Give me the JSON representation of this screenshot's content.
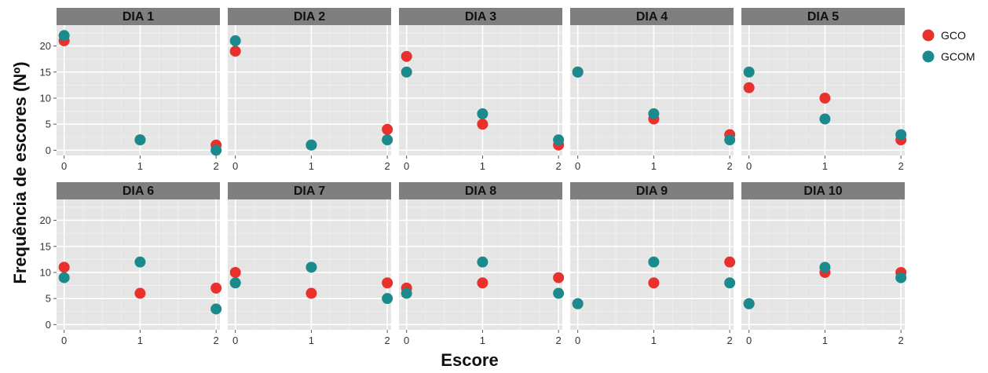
{
  "chart_data": {
    "type": "scatter",
    "facet_by": "day",
    "xlabel": "Escore",
    "ylabel": "Frequência de escores (Nº)",
    "x_ticks": [
      "0",
      "1",
      "2"
    ],
    "y_ticks": [
      "0",
      "5",
      "10",
      "15",
      "20"
    ],
    "xlim": [
      -0.1,
      2.05
    ],
    "ylim": [
      -1,
      24
    ],
    "grid": true,
    "legend_position": "right",
    "series": [
      {
        "name": "GCO",
        "color": "#e8302c"
      },
      {
        "name": "GCOM",
        "color": "#1b8a8c"
      }
    ],
    "panels": [
      {
        "title": "DIA 1",
        "GCO": [
          21,
          2,
          1
        ],
        "GCOM": [
          22,
          2,
          0
        ]
      },
      {
        "title": "DIA 2",
        "GCO": [
          19,
          1,
          4
        ],
        "GCOM": [
          21,
          1,
          2
        ]
      },
      {
        "title": "DIA 3",
        "GCO": [
          18,
          5,
          1
        ],
        "GCOM": [
          15,
          7,
          2
        ]
      },
      {
        "title": "DIA 4",
        "GCO": [
          15,
          6,
          3
        ],
        "GCOM": [
          15,
          7,
          2
        ]
      },
      {
        "title": "DIA 5",
        "GCO": [
          12,
          10,
          2
        ],
        "GCOM": [
          15,
          6,
          3
        ]
      },
      {
        "title": "DIA 6",
        "GCO": [
          11,
          6,
          7
        ],
        "GCOM": [
          9,
          12,
          3
        ]
      },
      {
        "title": "DIA 7",
        "GCO": [
          10,
          6,
          8
        ],
        "GCOM": [
          8,
          11,
          5
        ]
      },
      {
        "title": "DIA 8",
        "GCO": [
          7,
          8,
          9
        ],
        "GCOM": [
          6,
          12,
          6
        ]
      },
      {
        "title": "DIA 9",
        "GCO": [
          4,
          8,
          12
        ],
        "GCOM": [
          4,
          12,
          8
        ]
      },
      {
        "title": "DIA 10",
        "GCO": [
          4,
          10,
          10
        ],
        "GCOM": [
          4,
          11,
          9
        ]
      }
    ]
  }
}
